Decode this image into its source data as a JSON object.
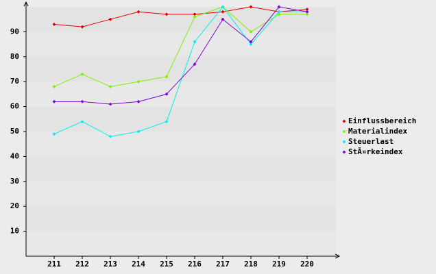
{
  "chart_data": {
    "type": "line",
    "categories": [
      "211",
      "212",
      "213",
      "214",
      "215",
      "216",
      "217",
      "218",
      "219",
      "220"
    ],
    "series": [
      {
        "name": "Einflussbereich",
        "color": "#e00000",
        "values": [
          93,
          92,
          95,
          98,
          97,
          97,
          98,
          100,
          98,
          99
        ]
      },
      {
        "name": "Materialindex",
        "color": "#80f000",
        "values": [
          68,
          73,
          68,
          70,
          72,
          96,
          100,
          90,
          97,
          97
        ]
      },
      {
        "name": "Steuerlast",
        "color": "#00f0f0",
        "values": [
          49,
          54,
          48,
          50,
          54,
          86,
          100,
          85,
          98,
          98
        ]
      },
      {
        "name": "StÃ¤rkeindex",
        "color": "#8000e0",
        "values": [
          62,
          62,
          61,
          62,
          65,
          77,
          95,
          86,
          100,
          98
        ]
      }
    ],
    "ylim": [
      0,
      100
    ],
    "yticks": [
      10,
      20,
      30,
      40,
      50,
      60,
      70,
      80,
      90
    ],
    "grid": true,
    "legend": "right"
  }
}
